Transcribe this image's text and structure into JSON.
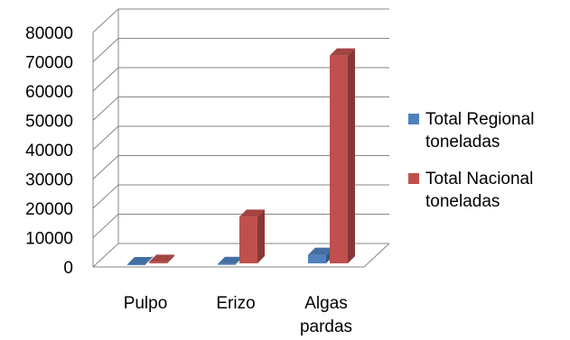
{
  "chart_data": {
    "type": "bar",
    "categories": [
      "Pulpo",
      "Erizo",
      "Algas pardas"
    ],
    "category_lines": [
      [
        "Pulpo"
      ],
      [
        "Erizo"
      ],
      [
        "Algas",
        "pardas"
      ]
    ],
    "series": [
      {
        "name": "Total Regional toneladas",
        "name_lines": [
          "Total Regional",
          "toneladas"
        ],
        "color": "#4f81bd",
        "values": [
          300,
          400,
          3500
        ]
      },
      {
        "name": "Total Nacional toneladas",
        "name_lines": [
          "Total Nacional",
          "toneladas"
        ],
        "color": "#c0504d",
        "values": [
          1100,
          16500,
          71500
        ]
      }
    ],
    "ylim": [
      0,
      80000
    ],
    "yticks": [
      0,
      10000,
      20000,
      30000,
      40000,
      50000,
      60000,
      70000,
      80000
    ],
    "grid": true,
    "legend": "right",
    "style": "3d-column"
  }
}
